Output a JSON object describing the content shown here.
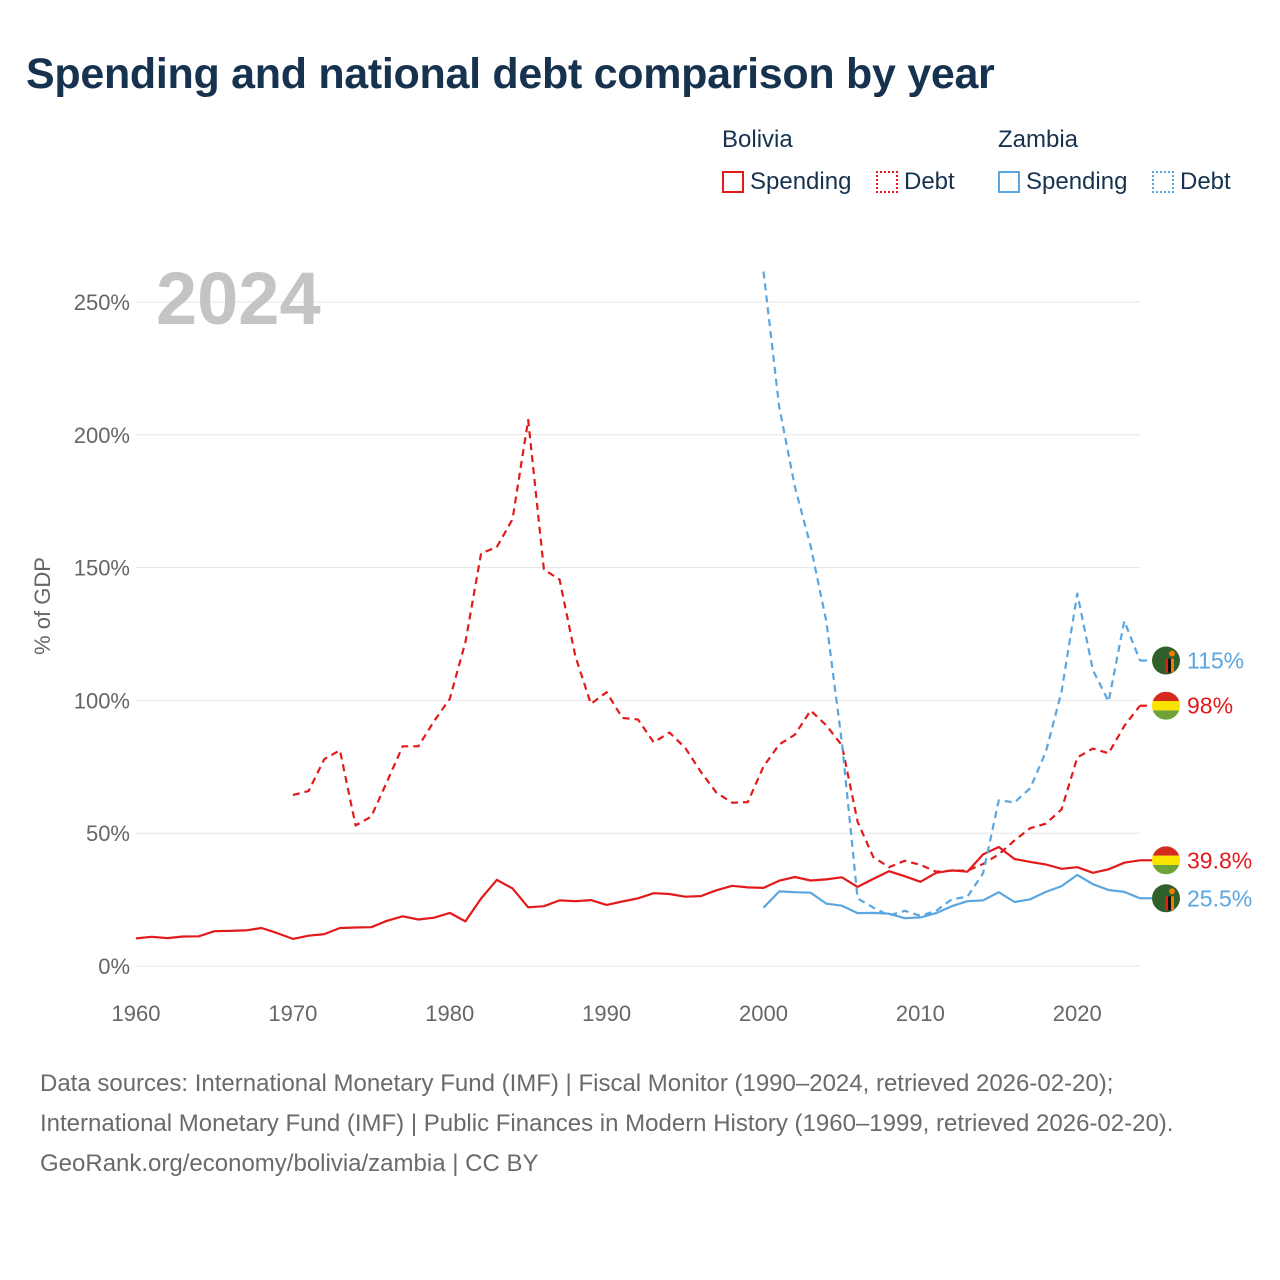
{
  "title": "Spending and national debt comparison by year",
  "legend": {
    "groups": [
      {
        "country": "Bolivia",
        "color": "#e31a1c",
        "items": [
          {
            "label": "Spending",
            "style": "solid"
          },
          {
            "label": "Debt",
            "style": "dotted"
          }
        ]
      },
      {
        "country": "Zambia",
        "color": "#5aa6e0",
        "items": [
          {
            "label": "Spending",
            "style": "solid"
          },
          {
            "label": "Debt",
            "style": "dotted"
          }
        ]
      }
    ]
  },
  "chart_data": {
    "type": "line",
    "year_label": "2024",
    "ylabel": "% of GDP",
    "xlabel": "",
    "xlim": [
      1960,
      2024
    ],
    "ylim": [
      0,
      250
    ],
    "x_ticks": [
      1960,
      1970,
      1980,
      1990,
      2000,
      2010,
      2020
    ],
    "y_ticks": [
      {
        "value": 0,
        "label": "0%"
      },
      {
        "value": 50,
        "label": "50%"
      },
      {
        "value": 100,
        "label": "100%"
      },
      {
        "value": 150,
        "label": "150%"
      },
      {
        "value": 200,
        "label": "200%"
      },
      {
        "value": 250,
        "label": "250%"
      }
    ],
    "grid": true,
    "series": [
      {
        "name": "Bolivia Spending",
        "country": "Bolivia",
        "color": "#e31a1c",
        "dash": "solid",
        "end_label": "39.8%",
        "flag": "bolivia-flag",
        "x": [
          1960,
          1961,
          1962,
          1963,
          1964,
          1965,
          1966,
          1967,
          1968,
          1969,
          1970,
          1971,
          1972,
          1973,
          1974,
          1975,
          1976,
          1977,
          1978,
          1979,
          1980,
          1981,
          1982,
          1983,
          1984,
          1985,
          1986,
          1987,
          1988,
          1989,
          1990,
          1991,
          1992,
          1993,
          1994,
          1995,
          1996,
          1997,
          1998,
          1999,
          2000,
          2001,
          2002,
          2003,
          2004,
          2005,
          2006,
          2007,
          2008,
          2009,
          2010,
          2011,
          2012,
          2013,
          2014,
          2015,
          2016,
          2017,
          2018,
          2019,
          2020,
          2021,
          2022,
          2023,
          2024
        ],
        "values": [
          10.4,
          11,
          10.5,
          11.1,
          11.2,
          13.1,
          13.2,
          13.4,
          14.3,
          12.4,
          10.2,
          11.4,
          12,
          14.3,
          14.5,
          14.6,
          17,
          18.7,
          17.5,
          18.2,
          20,
          16.8,
          25.4,
          32.4,
          29.2,
          22.1,
          22.5,
          24.7,
          24.4,
          24.8,
          23,
          24.3,
          25.5,
          27.4,
          27.1,
          26.1,
          26.3,
          28.5,
          30.2,
          29.6,
          29.4,
          32.1,
          33.5,
          32.2,
          32.6,
          33.4,
          29.8,
          32.8,
          35.7,
          33.8,
          31.7,
          35.1,
          36,
          35.5,
          42,
          44.8,
          40.3,
          39.2,
          38.2,
          36.6,
          37.2,
          35.1,
          36.4,
          38.9,
          39.8
        ]
      },
      {
        "name": "Bolivia Debt",
        "country": "Bolivia",
        "color": "#e31a1c",
        "dash": "dashed",
        "end_label": "98%",
        "flag": "bolivia-flag",
        "x": [
          1970,
          1971,
          1972,
          1973,
          1974,
          1975,
          1976,
          1977,
          1978,
          1979,
          1980,
          1981,
          1982,
          1983,
          1984,
          1985,
          1986,
          1987,
          1988,
          1989,
          1990,
          1991,
          1992,
          1993,
          1994,
          1995,
          1996,
          1997,
          1998,
          1999,
          2000,
          2001,
          2002,
          2003,
          2004,
          2005,
          2006,
          2007,
          2008,
          2009,
          2010,
          2011,
          2012,
          2013,
          2014,
          2015,
          2016,
          2017,
          2018,
          2019,
          2020,
          2021,
          2022,
          2023,
          2024
        ],
        "values": [
          64.4,
          65.9,
          77.9,
          81.2,
          52.9,
          56.3,
          69.4,
          82.7,
          82.7,
          92.2,
          100.6,
          121.9,
          155.4,
          157.7,
          168.2,
          205.6,
          149.3,
          145.5,
          116.7,
          98.7,
          103.1,
          93.4,
          92.8,
          84.2,
          87.9,
          82.2,
          73.1,
          65.3,
          61.5,
          61.7,
          75.1,
          83.4,
          87.1,
          96.2,
          90.6,
          83.1,
          54.3,
          41,
          37.2,
          39.6,
          38.1,
          35.5,
          35.9,
          35.9,
          38.4,
          42,
          47.3,
          51.9,
          53.6,
          59,
          78.5,
          81.9,
          80.1,
          90.4,
          98
        ]
      },
      {
        "name": "Zambia Spending",
        "country": "Zambia",
        "color": "#5aa6e0",
        "dash": "solid",
        "end_label": "25.5%",
        "flag": "zambia-flag",
        "x": [
          2000,
          2001,
          2002,
          2003,
          2004,
          2005,
          2006,
          2007,
          2008,
          2009,
          2010,
          2011,
          2012,
          2013,
          2014,
          2015,
          2016,
          2017,
          2018,
          2019,
          2020,
          2021,
          2022,
          2023,
          2024
        ],
        "values": [
          21.9,
          28.1,
          27.8,
          27.6,
          23.5,
          22.7,
          19.9,
          20,
          19.7,
          18,
          18.3,
          19.9,
          22.5,
          24.4,
          24.7,
          27.8,
          24.1,
          25.1,
          27.9,
          30.1,
          34.3,
          30.8,
          28.6,
          27.9,
          25.5
        ]
      },
      {
        "name": "Zambia Debt",
        "country": "Zambia",
        "color": "#5aa6e0",
        "dash": "dashed",
        "end_label": "115%",
        "flag": "zambia-flag",
        "x": [
          2000,
          2001,
          2002,
          2003,
          2004,
          2005,
          2006,
          2007,
          2008,
          2009,
          2010,
          2011,
          2012,
          2013,
          2014,
          2015,
          2016,
          2017,
          2018,
          2019,
          2020,
          2021,
          2022,
          2023,
          2024
        ],
        "values": [
          261.5,
          210.5,
          180.4,
          158.2,
          129.8,
          84.2,
          25.4,
          22,
          19,
          20.8,
          18.9,
          20.8,
          25.1,
          26.1,
          34.9,
          62.4,
          61.6,
          66.9,
          80.7,
          103.4,
          140.2,
          111.4,
          99.6,
          129.9,
          115
        ]
      }
    ]
  },
  "source": {
    "line1": "Data sources: International Monetary Fund (IMF) | Fiscal Monitor (1990–2024, retrieved 2026-02-20); International Monetary Fund (IMF) | Public Finances in Modern History (1960–1999, retrieved 2026-02-20).",
    "line2": "GeoRank.org/economy/bolivia/zambia | CC BY"
  }
}
